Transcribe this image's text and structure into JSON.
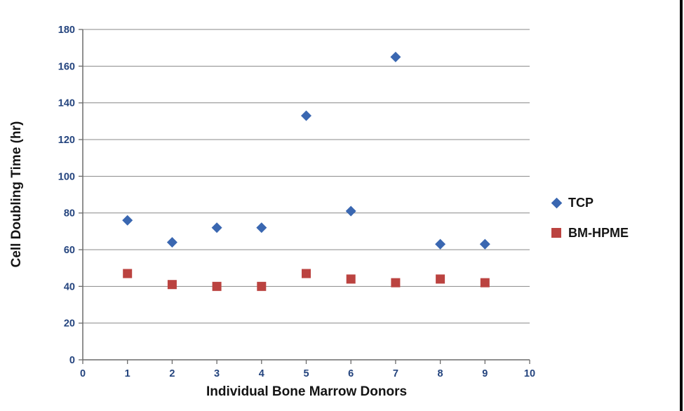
{
  "chart_data": {
    "type": "scatter",
    "title": "",
    "xlabel": "Individual Bone Marrow Donors",
    "ylabel": "Cell Doubling Time (hr)",
    "xlim": [
      0,
      10
    ],
    "ylim": [
      0,
      180
    ],
    "xtick_step": 1,
    "ytick_step": 20,
    "grid": "horizontal-only",
    "legend_position": "right",
    "x": [
      1,
      2,
      3,
      4,
      5,
      6,
      7,
      8,
      9
    ],
    "series": [
      {
        "name": "TCP",
        "marker": "diamond",
        "color": "#3A67B1",
        "values": [
          76,
          64,
          72,
          72,
          133,
          81,
          165,
          63,
          63
        ]
      },
      {
        "name": "BM-HPME",
        "marker": "square",
        "color": "#BB4340",
        "values": [
          47,
          41,
          40,
          40,
          47,
          44,
          42,
          44,
          42
        ]
      }
    ],
    "colors": {
      "gridline": "#8A8A8A",
      "axis": "#6B6B6B",
      "tick_label": "#24447E",
      "title_text": "#141414",
      "frame_right": "#0A0A0A",
      "background": "#FFFFFF"
    }
  }
}
